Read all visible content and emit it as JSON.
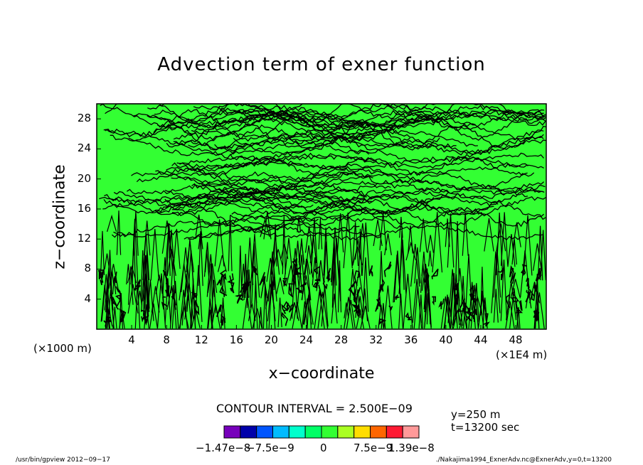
{
  "chart_data": {
    "type": "heatmap",
    "title": "Advection term of exner function",
    "xlabel": "x−coordinate",
    "ylabel": "z−coordinate",
    "x_unit": "(×1E4 m)",
    "y_unit": "(×1000 m)",
    "xlim": [
      0,
      51.5
    ],
    "ylim": [
      0,
      30
    ],
    "x_ticks": [
      "4",
      "8",
      "12",
      "16",
      "20",
      "24",
      "28",
      "32",
      "36",
      "40",
      "44",
      "48"
    ],
    "x_tick_values": [
      4,
      8,
      12,
      16,
      20,
      24,
      28,
      32,
      36,
      40,
      44,
      48
    ],
    "y_ticks": [
      "4",
      "8",
      "12",
      "16",
      "20",
      "24",
      "28"
    ],
    "y_tick_values": [
      4,
      8,
      12,
      16,
      20,
      24,
      28
    ],
    "contour_interval": "CONTOUR INTERVAL = 2.500E−09",
    "y_info": "y=250 m",
    "t_info": "t=13200 sec",
    "fill_color": "#33ff33",
    "contour_color": "#000000",
    "colorbar": {
      "colors": [
        "#7700bb",
        "#0000aa",
        "#0055ff",
        "#00bbff",
        "#00ffcc",
        "#00ff66",
        "#33ff33",
        "#aaff22",
        "#ffdd00",
        "#ff6600",
        "#ff1a33",
        "#ff9999"
      ],
      "tick_labels": [
        "−1.47e−8",
        "−7.5e−9",
        "0",
        "7.5e−9",
        "1.39e−8"
      ]
    }
  },
  "footer": {
    "left": "/usr/bin/gpview   2012−09−17",
    "right": "./Nakajima1994_ExnerAdv.nc@ExnerAdv,y=0,t=13200"
  }
}
